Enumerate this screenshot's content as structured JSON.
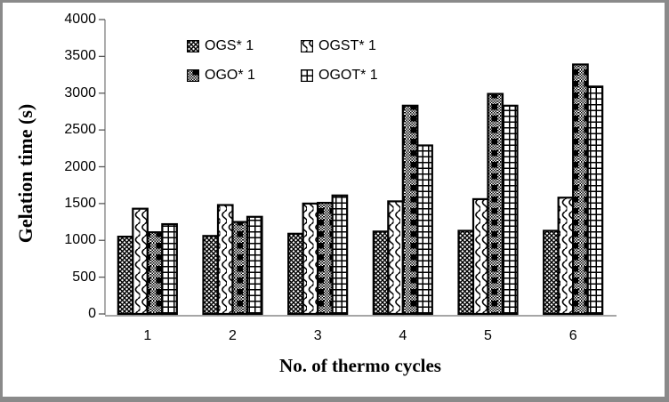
{
  "chart_data": {
    "type": "bar",
    "title": "",
    "categories": [
      "1",
      "2",
      "3",
      "4",
      "5",
      "6"
    ],
    "series": [
      {
        "name": "OGS* 1",
        "pattern": "diagonal-crosshatch",
        "values": [
          1050,
          1060,
          1090,
          1120,
          1130,
          1130
        ]
      },
      {
        "name": "OGST* 1",
        "pattern": "wave",
        "values": [
          1430,
          1480,
          1500,
          1530,
          1560,
          1580
        ]
      },
      {
        "name": "OGO* 1",
        "pattern": "checker-block-weave",
        "values": [
          1110,
          1250,
          1510,
          2830,
          2990,
          3390
        ]
      },
      {
        "name": "OGOT* 1",
        "pattern": "small-grid",
        "values": [
          1220,
          1320,
          1610,
          2290,
          2830,
          3090
        ]
      }
    ],
    "xlabel": "No. of thermo cycles",
    "ylabel": "Gelation time (s)",
    "ylim": [
      0,
      4000
    ],
    "ytick_step": 500,
    "yticks": [
      "0",
      "500",
      "1000",
      "1500",
      "2000",
      "2500",
      "3000",
      "3500",
      "4000"
    ],
    "grid": false,
    "legend_position": "top-center",
    "legend_columns": 2,
    "colors": {
      "bar_fill_base": "#ffffff",
      "bar_pattern": "#000000",
      "bar_outline": "#000000",
      "y_axis_line": "#808080",
      "x_axis_line": "#a6a6a6",
      "tick_mark": "#595959",
      "frame_border": "#8a8a8a",
      "text": "#000000",
      "background": "#ffffff"
    }
  }
}
